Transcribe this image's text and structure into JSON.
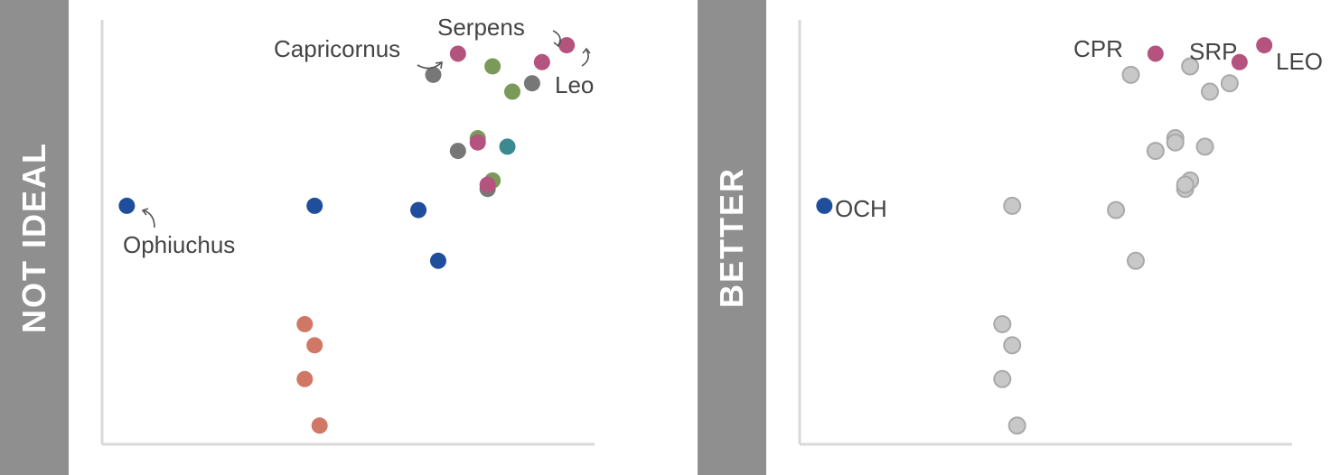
{
  "panels": {
    "left": {
      "label": "NOT IDEAL"
    },
    "right": {
      "label": "BETTER"
    }
  },
  "chart_data": [
    {
      "type": "scatter",
      "panel": "left",
      "grid": false,
      "xlim": [
        0,
        100
      ],
      "ylim": [
        0,
        100
      ],
      "series": [
        {
          "color": "#1f4e9c",
          "points": [
            [
              5,
              56
            ],
            [
              43,
              56
            ],
            [
              64,
              55
            ],
            [
              68,
              43
            ]
          ]
        },
        {
          "color": "#d07765",
          "points": [
            [
              41,
              28
            ],
            [
              43,
              23
            ],
            [
              41,
              15
            ],
            [
              44,
              4
            ]
          ]
        },
        {
          "color": "#7a9a5a",
          "points": [
            [
              79,
              89
            ],
            [
              83,
              83
            ],
            [
              76,
              72
            ],
            [
              79,
              62
            ]
          ]
        },
        {
          "color": "#777777",
          "points": [
            [
              67,
              87
            ],
            [
              87,
              85
            ],
            [
              72,
              69
            ],
            [
              78,
              60
            ]
          ]
        },
        {
          "color": "#3a8a8f",
          "points": [
            [
              82,
              70
            ]
          ]
        },
        {
          "color": "#b5537f",
          "points": [
            [
              72,
              92
            ],
            [
              94,
              94
            ],
            [
              89,
              90
            ],
            [
              76,
              71
            ],
            [
              78,
              61
            ]
          ]
        }
      ],
      "annotations": [
        "Serpens",
        "Capricornus",
        "Leo",
        "Ophiuchus"
      ]
    },
    {
      "type": "scatter",
      "panel": "right",
      "grid": false,
      "xlim": [
        0,
        100
      ],
      "ylim": [
        0,
        100
      ],
      "series": [
        {
          "color": "#c8c8c8",
          "stroke": "#a9a9a9",
          "points": [
            [
              43,
              56
            ],
            [
              64,
              55
            ],
            [
              68,
              43
            ],
            [
              41,
              28
            ],
            [
              43,
              23
            ],
            [
              41,
              15
            ],
            [
              44,
              4
            ],
            [
              79,
              89
            ],
            [
              83,
              83
            ],
            [
              76,
              72
            ],
            [
              79,
              62
            ],
            [
              67,
              87
            ],
            [
              87,
              85
            ],
            [
              72,
              69
            ],
            [
              78,
              60
            ],
            [
              82,
              70
            ],
            [
              76,
              71
            ],
            [
              78,
              61
            ]
          ]
        },
        {
          "color": "#1f4e9c",
          "points": [
            [
              5,
              56
            ]
          ]
        },
        {
          "color": "#b5537f",
          "points": [
            [
              72,
              92
            ],
            [
              94,
              94
            ],
            [
              89,
              90
            ]
          ]
        }
      ],
      "annotations": [
        "OCH",
        "CPR",
        "SRP",
        "LEO"
      ]
    }
  ]
}
